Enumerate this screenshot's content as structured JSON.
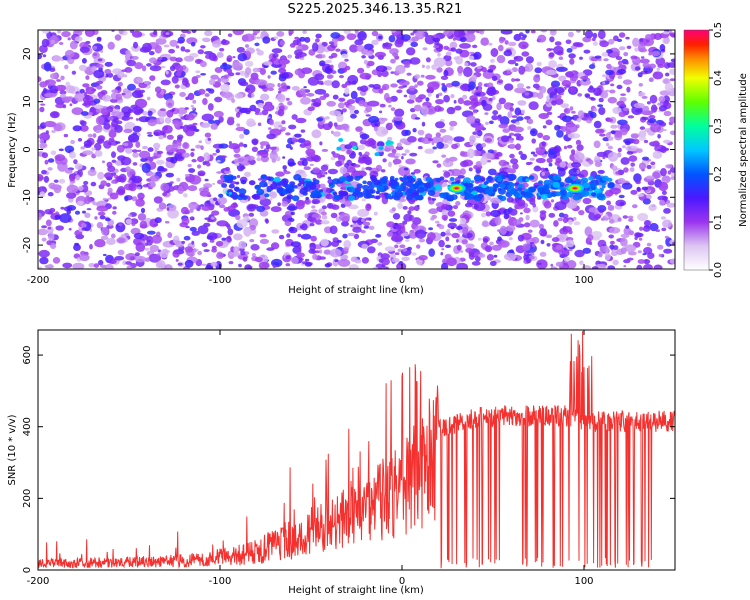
{
  "title": "S225.2025.346.13.35.R21",
  "colors": {
    "snr_line": "#f4312f",
    "frame": "#000000",
    "spectrogram_background": "#ffffff"
  },
  "chart_data": [
    {
      "type": "heatmap",
      "name": "spectrogram",
      "xlabel": "Height of straight line (km)",
      "ylabel": "Frequency (Hz)",
      "xlim": [
        -200,
        150
      ],
      "ylim": [
        -25,
        25
      ],
      "x_ticks": [
        -200,
        -100,
        0,
        100
      ],
      "y_ticks": [
        -20,
        -10,
        0,
        10,
        20
      ],
      "colorscale": "rainbow",
      "colorbar": {
        "label": "Normalized spectral amplitude",
        "range": [
          0.0,
          0.5
        ],
        "ticks": [
          0.0,
          0.1,
          0.2,
          0.3,
          0.4,
          0.5
        ],
        "tick_labels": [
          "0.0",
          "0.1",
          "0.2",
          "0.3",
          "0.4",
          "0.5"
        ]
      },
      "features": {
        "signal_band_frequency_hz": -8,
        "signal_band_start_km": -100,
        "signal_band_end_km": 115,
        "peak_amplitude_near_km": [
          30,
          95
        ],
        "peak_amplitude": 0.5
      }
    },
    {
      "type": "line",
      "name": "snr",
      "xlabel": "Height of straight line (km)",
      "ylabel": "SNR (10 * v/v)",
      "xlim": [
        -200,
        150
      ],
      "ylim": [
        0,
        670
      ],
      "x_ticks": [
        -200,
        -100,
        0,
        100
      ],
      "y_ticks": [
        0,
        200,
        400,
        600
      ],
      "series": [
        {
          "x_range": [
            -200,
            150
          ],
          "profile": [
            {
              "x": -200,
              "y": 18
            },
            {
              "x": -150,
              "y": 22
            },
            {
              "x": -110,
              "y": 28
            },
            {
              "x": -80,
              "y": 50
            },
            {
              "x": -60,
              "y": 90
            },
            {
              "x": -40,
              "y": 150
            },
            {
              "x": -20,
              "y": 210
            },
            {
              "x": 0,
              "y": 260
            },
            {
              "x": 10,
              "y": 320
            },
            {
              "x": 20,
              "y": 390
            },
            {
              "x": 35,
              "y": 420
            },
            {
              "x": 50,
              "y": 430
            },
            {
              "x": 95,
              "y": 430
            },
            {
              "x": 100,
              "y": 415
            },
            {
              "x": 150,
              "y": 415
            }
          ],
          "max": 670
        }
      ]
    }
  ]
}
